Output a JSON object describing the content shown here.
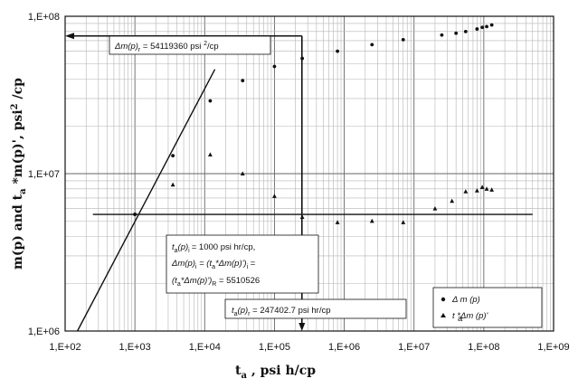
{
  "chart_data": {
    "type": "scatter",
    "x_scale": "log",
    "y_scale": "log",
    "xlim": [
      100,
      1000000000
    ],
    "ylim": [
      1000000,
      100000000
    ],
    "x_ticks": [
      "1,E+02",
      "1,E+03",
      "1,E+04",
      "1,E+05",
      "1,E+06",
      "1,E+07",
      "1,E+08",
      "1,E+09"
    ],
    "y_ticks": [
      "1,E+06",
      "1,E+07",
      "1,E+08"
    ],
    "xlabel_main": "t",
    "xlabel_sub": "a",
    "xlabel_rest": " , psi h/cp",
    "ylabel_1": "m(p) and t",
    "ylabel_sub": "a",
    "ylabel_2": " *m(p)', psi",
    "ylabel_sup": "2",
    "ylabel_3": " /cp",
    "grid": true,
    "legend_position": "bottom-right",
    "series": [
      {
        "name": "Δ m (p)",
        "marker": "circle",
        "x": [
          3500,
          12000,
          35000,
          100000,
          250000,
          800000,
          2500000,
          7000000,
          25000000,
          40000000,
          55000000,
          80000000,
          95000000,
          110000000,
          130000000
        ],
        "y": [
          13000000,
          29000000,
          39000000,
          48000000,
          54000000,
          60000000,
          66000000,
          71000000,
          76000000,
          78000000,
          80000000,
          83000000,
          85000000,
          86000000,
          88000000
        ]
      },
      {
        "name": "t  *Δm (p)'",
        "name_sub": "a",
        "marker": "triangle",
        "x": [
          3500,
          12000,
          35000,
          100000,
          250000,
          800000,
          2500000,
          7000000,
          20000000,
          35000000,
          55000000,
          80000000,
          95000000,
          110000000,
          130000000
        ],
        "y": [
          8500000,
          13200000,
          10000000,
          7200000,
          5300000,
          4900000,
          5000000,
          4900000,
          6000000,
          6700000,
          7700000,
          7800000,
          8200000,
          8000000,
          7900000
        ]
      }
    ],
    "unit_slope_line": {
      "x": [
        150,
        14000
      ],
      "y": [
        1000000,
        46000000
      ]
    },
    "horizontal_line": {
      "y": 5510526,
      "x": [
        250,
        500000000
      ]
    },
    "vertical_line": {
      "x": 247402.7,
      "y": [
        1000000,
        75000000
      ]
    },
    "intersection": {
      "x": 1000,
      "y": 5510526
    },
    "arrow_to_y_axis": {
      "y": 75000000,
      "x_from": 247402.7
    },
    "annotations": {
      "top": {
        "pre": "Δm(p)",
        "sub": "r",
        "mid": "  =  54119360 psi ",
        "sup": "2",
        "post": "/cp"
      },
      "box1": {
        "l1_t": "t",
        "l1_sub": "a",
        "l1_par": "(p)",
        "l1_i": "i",
        "l1_rest": "=  1000 psi hr/cp,",
        "l2_a": "Δm(p)",
        "l2_i": "i",
        "l2_b": "  =  (t",
        "l2_sub": "a",
        "l2_c": "*Δm(p)')",
        "l2_i2": "i",
        "l2_d": "  =",
        "l3_a": "(t",
        "l3_sub": "a",
        "l3_b": "*Δm(p)')",
        "l3_sub2": "R",
        "l3_c": " =  5510526"
      },
      "box2": {
        "t": "t",
        "sub": "a",
        "par": "(p)",
        "r": "r",
        "rest": " =  247402.7 psi hr/cp"
      }
    }
  }
}
